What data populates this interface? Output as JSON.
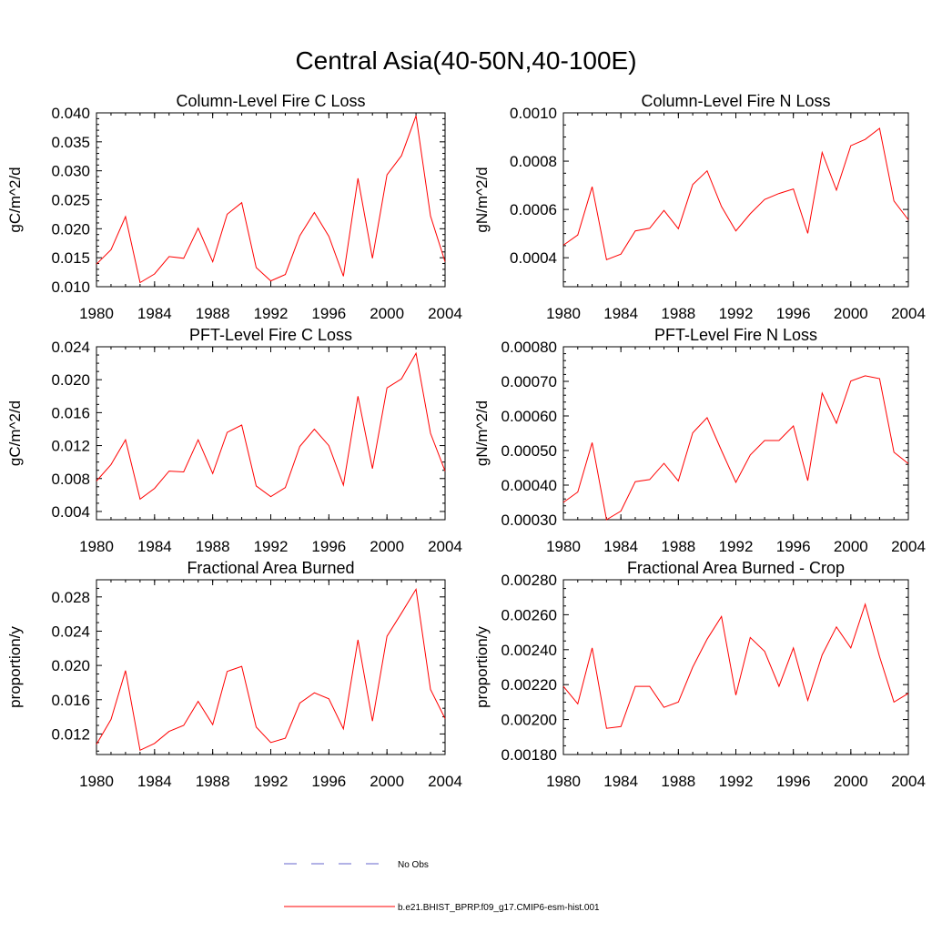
{
  "title": "Central Asia(40-50N,40-100E)",
  "chart_data": [
    {
      "type": "line",
      "title": "Column-Level Fire C Loss",
      "ylabel": "gC/m^2/d",
      "xlim": [
        1980,
        2004
      ],
      "ylim": [
        0.01,
        0.04
      ],
      "xticks": [
        "1980",
        "1984",
        "1988",
        "1992",
        "1996",
        "2000",
        "2004"
      ],
      "xtick_values": [
        1980,
        1984,
        1988,
        1992,
        1996,
        2000,
        2004
      ],
      "yticks": [
        "0.010",
        "0.015",
        "0.020",
        "0.025",
        "0.030",
        "0.035",
        "0.040"
      ],
      "ytick_values": [
        0.01,
        0.015,
        0.02,
        0.025,
        0.03,
        0.035,
        0.04
      ],
      "yminor": [
        0.011,
        0.012,
        0.013,
        0.014,
        0.016,
        0.017,
        0.018,
        0.019,
        0.021,
        0.022,
        0.023,
        0.024,
        0.026,
        0.027,
        0.028,
        0.029,
        0.031,
        0.032,
        0.033,
        0.034,
        0.036,
        0.037,
        0.038,
        0.039
      ],
      "x": [
        1980,
        1981,
        1982,
        1983,
        1984,
        1985,
        1986,
        1987,
        1988,
        1989,
        1990,
        1991,
        1992,
        1993,
        1994,
        1995,
        1996,
        1997,
        1998,
        1999,
        2000,
        2001,
        2002,
        2003,
        2004
      ],
      "series": [
        {
          "name": "b.e21.BHIST_BPRP.f09_g17.CMIP6-esm-hist.001",
          "values": [
            0.0139,
            0.0164,
            0.0221,
            0.0107,
            0.0122,
            0.0152,
            0.0149,
            0.0201,
            0.0143,
            0.0225,
            0.0245,
            0.0133,
            0.011,
            0.0121,
            0.0188,
            0.0228,
            0.0187,
            0.0118,
            0.0287,
            0.0149,
            0.0293,
            0.0326,
            0.0395,
            0.0222,
            0.0143
          ]
        }
      ]
    },
    {
      "type": "line",
      "title": "Column-Level Fire N Loss",
      "ylabel": "gN/m^2/d",
      "xlim": [
        1980,
        2004
      ],
      "ylim": [
        0.00028,
        0.001
      ],
      "xticks": [
        "1980",
        "1984",
        "1988",
        "1992",
        "1996",
        "2000",
        "2004"
      ],
      "xtick_values": [
        1980,
        1984,
        1988,
        1992,
        1996,
        2000,
        2004
      ],
      "yticks": [
        "0.0004",
        "0.0006",
        "0.0008",
        "0.0010"
      ],
      "ytick_values": [
        0.0004,
        0.0006,
        0.0008,
        0.001
      ],
      "yminor": [
        0.0003,
        0.00035,
        0.00045,
        0.0005,
        0.00055,
        0.00065,
        0.0007,
        0.00075,
        0.00085,
        0.0009,
        0.00095
      ],
      "x": [
        1980,
        1981,
        1982,
        1983,
        1984,
        1985,
        1986,
        1987,
        1988,
        1989,
        1990,
        1991,
        1992,
        1993,
        1994,
        1995,
        1996,
        1997,
        1998,
        1999,
        2000,
        2001,
        2002,
        2003,
        2004
      ],
      "series": [
        {
          "name": "b.e21.BHIST_BPRP.f09_g17.CMIP6-esm-hist.001",
          "values": [
            0.000452,
            0.000494,
            0.000694,
            0.000392,
            0.000415,
            0.000511,
            0.000522,
            0.000596,
            0.00052,
            0.000703,
            0.00076,
            0.000612,
            0.000511,
            0.000582,
            0.000641,
            0.000666,
            0.000685,
            0.000501,
            0.000836,
            0.00068,
            0.000864,
            0.00089,
            0.000936,
            0.000635,
            0.000557
          ]
        }
      ]
    },
    {
      "type": "line",
      "title": "PFT-Level Fire C Loss",
      "ylabel": "gC/m^2/d",
      "xlim": [
        1980,
        2004
      ],
      "ylim": [
        0.003,
        0.024
      ],
      "xticks": [
        "1980",
        "1984",
        "1988",
        "1992",
        "1996",
        "2000",
        "2004"
      ],
      "xtick_values": [
        1980,
        1984,
        1988,
        1992,
        1996,
        2000,
        2004
      ],
      "yticks": [
        "0.004",
        "0.008",
        "0.012",
        "0.016",
        "0.020",
        "0.024"
      ],
      "ytick_values": [
        0.004,
        0.008,
        0.012,
        0.016,
        0.02,
        0.024
      ],
      "yminor": [
        0.005,
        0.006,
        0.007,
        0.009,
        0.01,
        0.011,
        0.013,
        0.014,
        0.015,
        0.017,
        0.018,
        0.019,
        0.021,
        0.022,
        0.023
      ],
      "x": [
        1980,
        1981,
        1982,
        1983,
        1984,
        1985,
        1986,
        1987,
        1988,
        1989,
        1990,
        1991,
        1992,
        1993,
        1994,
        1995,
        1996,
        1997,
        1998,
        1999,
        2000,
        2001,
        2002,
        2003,
        2004
      ],
      "series": [
        {
          "name": "b.e21.BHIST_BPRP.f09_g17.CMIP6-esm-hist.001",
          "values": [
            0.0077,
            0.0097,
            0.0127,
            0.0055,
            0.0068,
            0.0089,
            0.0088,
            0.0127,
            0.0086,
            0.0136,
            0.0145,
            0.0071,
            0.0058,
            0.0069,
            0.0119,
            0.014,
            0.012,
            0.0072,
            0.018,
            0.0092,
            0.019,
            0.0201,
            0.0232,
            0.0135,
            0.0089
          ]
        }
      ]
    },
    {
      "type": "line",
      "title": "PFT-Level Fire N Loss",
      "ylabel": "gN/m^2/d",
      "xlim": [
        1980,
        2004
      ],
      "ylim": [
        0.0003,
        0.0008
      ],
      "xticks": [
        "1980",
        "1984",
        "1988",
        "1992",
        "1996",
        "2000",
        "2004"
      ],
      "xtick_values": [
        1980,
        1984,
        1988,
        1992,
        1996,
        2000,
        2004
      ],
      "yticks": [
        "0.00030",
        "0.00040",
        "0.00050",
        "0.00060",
        "0.00070",
        "0.00080"
      ],
      "ytick_values": [
        0.0003,
        0.0004,
        0.0005,
        0.0006,
        0.0007,
        0.0008
      ],
      "yminor": [
        0.00032,
        0.00034,
        0.00036,
        0.00038,
        0.00042,
        0.00044,
        0.00046,
        0.00048,
        0.00052,
        0.00054,
        0.00056,
        0.00058,
        0.00062,
        0.00064,
        0.00066,
        0.00068,
        0.00072,
        0.00074,
        0.00076,
        0.00078
      ],
      "x": [
        1980,
        1981,
        1982,
        1983,
        1984,
        1985,
        1986,
        1987,
        1988,
        1989,
        1990,
        1991,
        1992,
        1993,
        1994,
        1995,
        1996,
        1997,
        1998,
        1999,
        2000,
        2001,
        2002,
        2003,
        2004
      ],
      "series": [
        {
          "name": "b.e21.BHIST_BPRP.f09_g17.CMIP6-esm-hist.001",
          "values": [
            0.00035,
            0.00038,
            0.000523,
            0.0003,
            0.000325,
            0.00041,
            0.000416,
            0.000463,
            0.000412,
            0.000551,
            0.000595,
            0.0005,
            0.000408,
            0.000487,
            0.000529,
            0.000529,
            0.000571,
            0.000413,
            0.000666,
            0.000579,
            0.000701,
            0.000716,
            0.000708,
            0.000495,
            0.000462
          ]
        }
      ]
    },
    {
      "type": "line",
      "title": "Fractional Area Burned",
      "ylabel": "proportion/y",
      "xlim": [
        1980,
        2004
      ],
      "ylim": [
        0.0096,
        0.03
      ],
      "xticks": [
        "1980",
        "1984",
        "1988",
        "1992",
        "1996",
        "2000",
        "2004"
      ],
      "xtick_values": [
        1980,
        1984,
        1988,
        1992,
        1996,
        2000,
        2004
      ],
      "yticks": [
        "0.012",
        "0.016",
        "0.020",
        "0.024",
        "0.028"
      ],
      "ytick_values": [
        0.012,
        0.016,
        0.02,
        0.024,
        0.028
      ],
      "yminor": [
        0.01,
        0.011,
        0.013,
        0.014,
        0.015,
        0.017,
        0.018,
        0.019,
        0.021,
        0.022,
        0.023,
        0.025,
        0.026,
        0.027,
        0.029
      ],
      "x": [
        1980,
        1981,
        1982,
        1983,
        1984,
        1985,
        1986,
        1987,
        1988,
        1989,
        1990,
        1991,
        1992,
        1993,
        1994,
        1995,
        1996,
        1997,
        1998,
        1999,
        2000,
        2001,
        2002,
        2003,
        2004
      ],
      "series": [
        {
          "name": "b.e21.BHIST_BPRP.f09_g17.CMIP6-esm-hist.001",
          "values": [
            0.0108,
            0.0137,
            0.0194,
            0.0101,
            0.0109,
            0.0123,
            0.013,
            0.0158,
            0.0131,
            0.0193,
            0.0199,
            0.0128,
            0.011,
            0.0115,
            0.0156,
            0.0168,
            0.0161,
            0.0126,
            0.023,
            0.0135,
            0.0234,
            0.0261,
            0.0289,
            0.0172,
            0.0138
          ]
        }
      ]
    },
    {
      "type": "line",
      "title": "Fractional Area Burned - Crop",
      "ylabel": "proportion/y",
      "xlim": [
        1980,
        2004
      ],
      "ylim": [
        0.0018,
        0.0028
      ],
      "xticks": [
        "1980",
        "1984",
        "1988",
        "1992",
        "1996",
        "2000",
        "2004"
      ],
      "xtick_values": [
        1980,
        1984,
        1988,
        1992,
        1996,
        2000,
        2004
      ],
      "yticks": [
        "0.00180",
        "0.00200",
        "0.00220",
        "0.00240",
        "0.00260",
        "0.00280"
      ],
      "ytick_values": [
        0.0018,
        0.002,
        0.0022,
        0.0024,
        0.0026,
        0.0028
      ],
      "yminor": [
        0.00185,
        0.0019,
        0.00195,
        0.00205,
        0.0021,
        0.00215,
        0.00225,
        0.0023,
        0.00235,
        0.00245,
        0.0025,
        0.00255,
        0.00265,
        0.0027,
        0.00275
      ],
      "x": [
        1980,
        1981,
        1982,
        1983,
        1984,
        1985,
        1986,
        1987,
        1988,
        1989,
        1990,
        1991,
        1992,
        1993,
        1994,
        1995,
        1996,
        1997,
        1998,
        1999,
        2000,
        2001,
        2002,
        2003,
        2004
      ],
      "series": [
        {
          "name": "b.e21.BHIST_BPRP.f09_g17.CMIP6-esm-hist.001",
          "values": [
            0.00219,
            0.00209,
            0.00241,
            0.00195,
            0.00196,
            0.00219,
            0.00219,
            0.00207,
            0.0021,
            0.0023,
            0.00246,
            0.00259,
            0.00214,
            0.00247,
            0.00239,
            0.00219,
            0.00241,
            0.00211,
            0.00237,
            0.00253,
            0.00241,
            0.00266,
            0.00236,
            0.0021,
            0.00215
          ]
        }
      ]
    }
  ],
  "legend": {
    "items": [
      {
        "label": "No Obs",
        "color": "#6666cc",
        "style": "dashed"
      },
      {
        "label": "b.e21.BHIST_BPRP.f09_g17.CMIP6-esm-hist.001",
        "color": "#ff0000",
        "style": "solid"
      }
    ]
  }
}
